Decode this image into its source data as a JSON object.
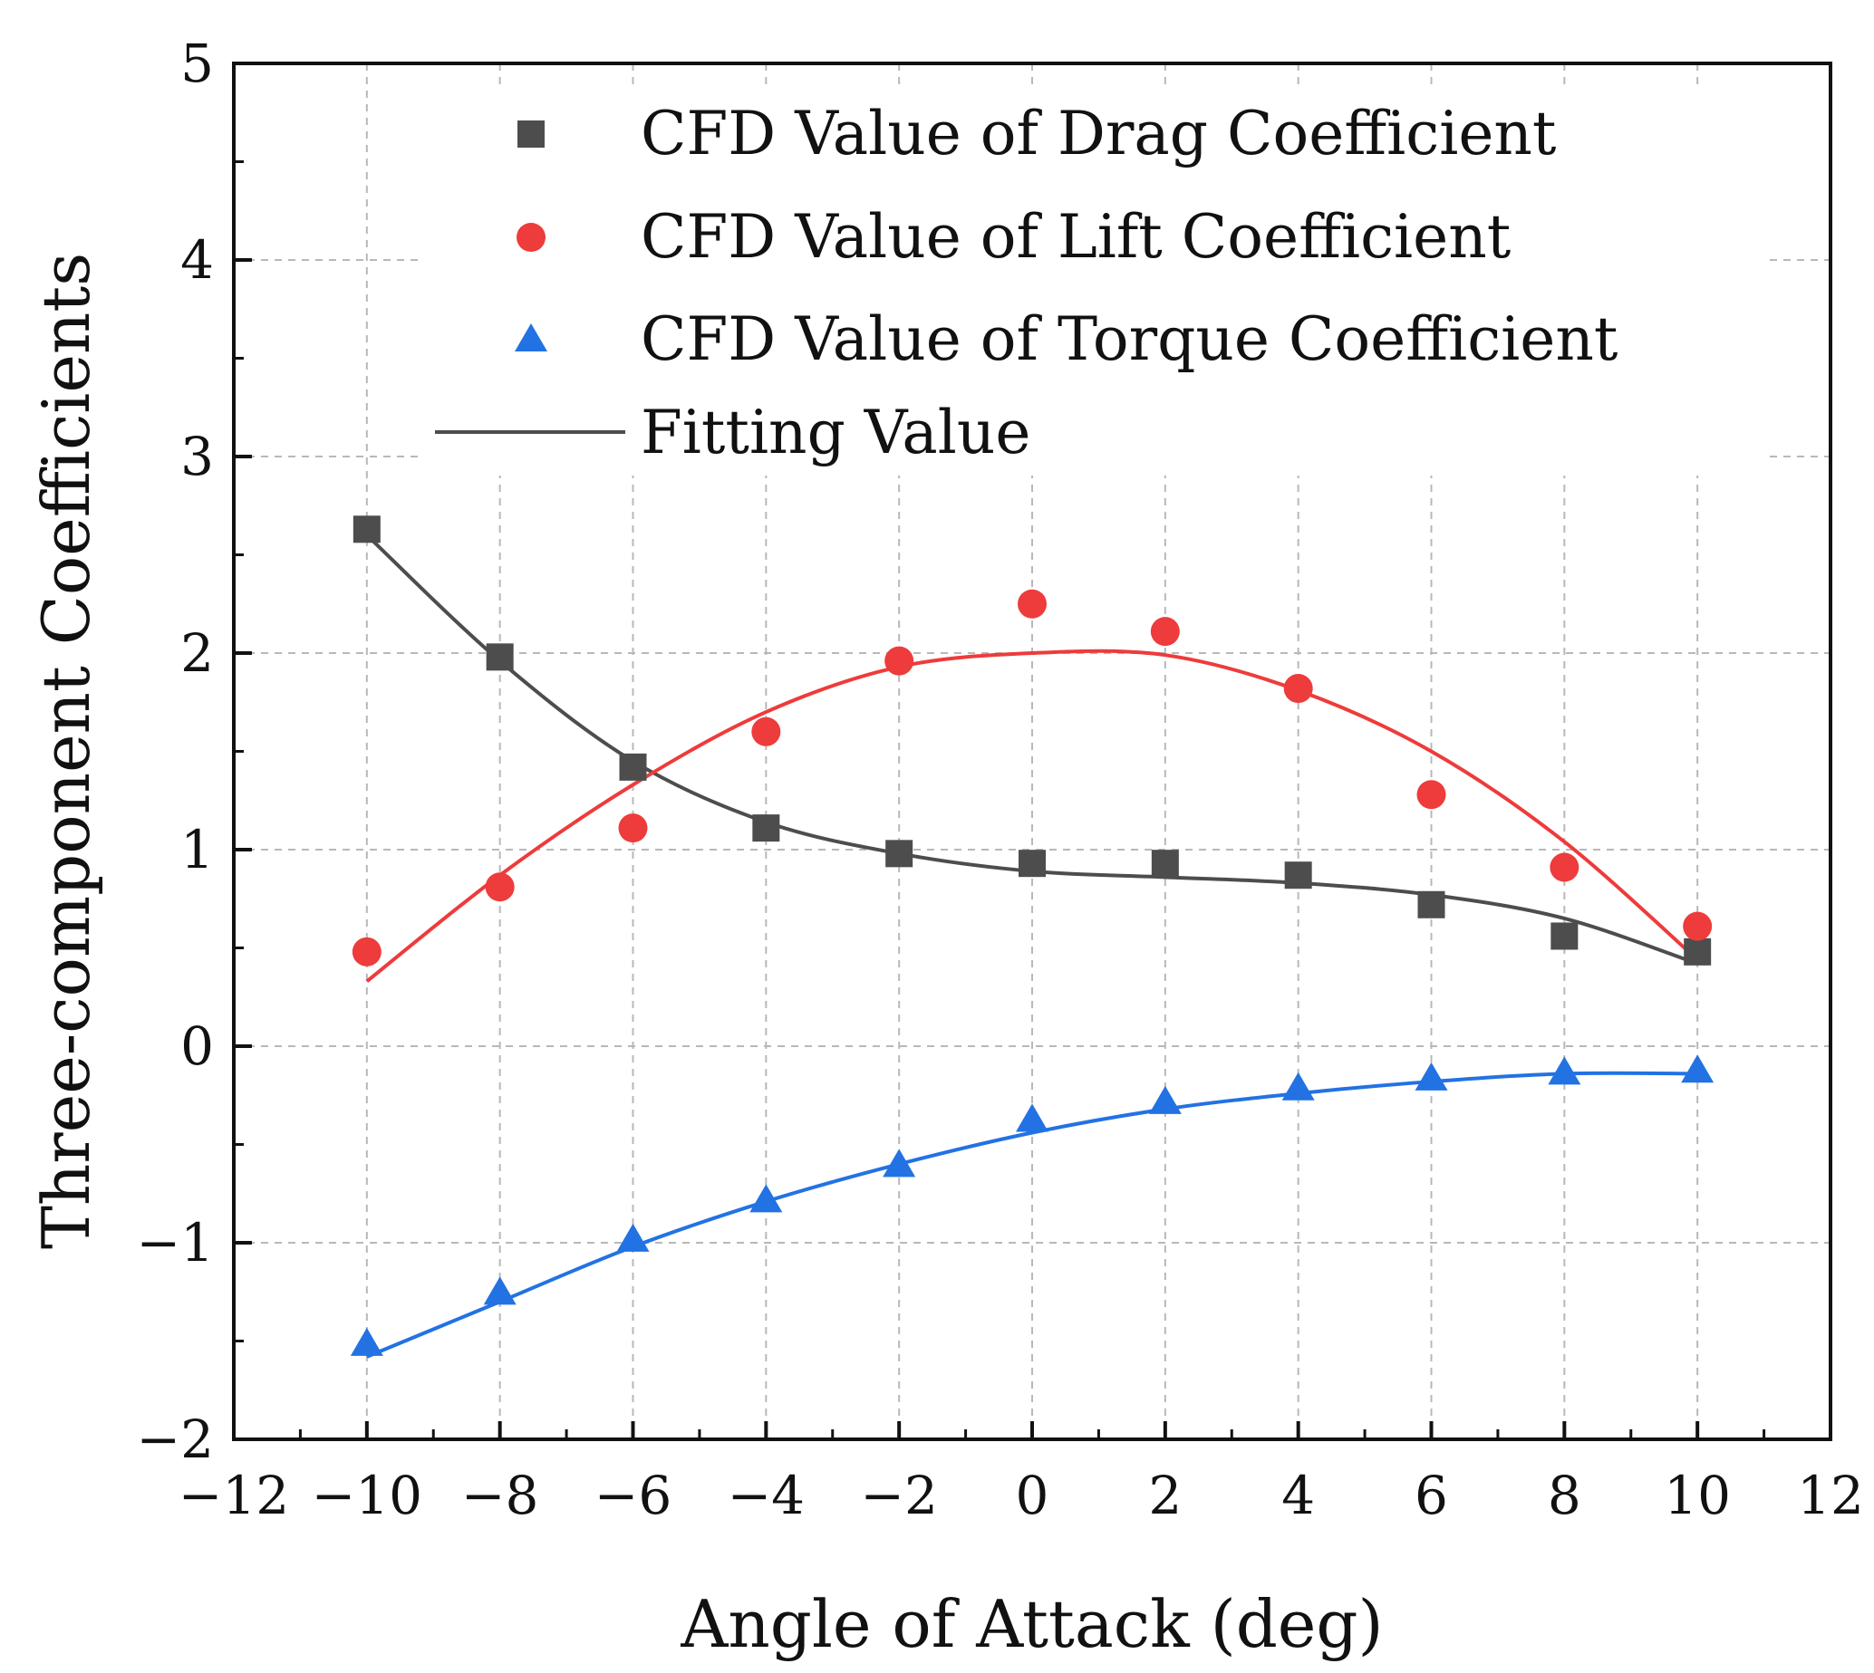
{
  "chart_data": {
    "type": "scatter",
    "xlabel": "Angle of Attack (deg)",
    "ylabel": "Three-component Coefficients",
    "xlim": [
      -12,
      12
    ],
    "ylim": [
      -2,
      5
    ],
    "grid": true,
    "x_ticks": [
      -12,
      -10,
      -8,
      -6,
      -4,
      -2,
      0,
      2,
      4,
      6,
      8,
      10,
      12
    ],
    "y_ticks": [
      -2,
      -1,
      0,
      1,
      2,
      3,
      4,
      5
    ],
    "x_tick_labels": [
      "−12",
      "−10",
      "−8",
      "−6",
      "−4",
      "−2",
      "0",
      "2",
      "4",
      "6",
      "8",
      "10",
      "12"
    ],
    "y_tick_labels": [
      "−2",
      "−1",
      "0",
      "1",
      "2",
      "3",
      "4",
      "5"
    ],
    "legend_position": "top-right",
    "x": [
      -10,
      -8,
      -6,
      -4,
      -2,
      0,
      2,
      4,
      6,
      8,
      10
    ],
    "series": [
      {
        "name": "CFD Value of Drag Coefficient",
        "marker": "square",
        "color": "#4d4d4d",
        "values": [
          2.63,
          1.98,
          1.42,
          1.11,
          0.98,
          0.93,
          0.93,
          0.87,
          0.72,
          0.56,
          0.48
        ],
        "fit": [
          2.6,
          1.96,
          1.45,
          1.14,
          0.98,
          0.89,
          0.86,
          0.83,
          0.77,
          0.65,
          0.42
        ]
      },
      {
        "name": "CFD Value of Lift Coefficient",
        "marker": "circle",
        "color": "#ee3b3b",
        "values": [
          0.48,
          0.81,
          1.11,
          1.6,
          1.96,
          2.25,
          2.11,
          1.82,
          1.28,
          0.91,
          0.61
        ],
        "fit": [
          0.33,
          0.87,
          1.33,
          1.7,
          1.93,
          2.0,
          1.99,
          1.81,
          1.5,
          1.04,
          0.44
        ]
      },
      {
        "name": "CFD Value of Torque Coefficient",
        "marker": "triangle",
        "color": "#2272e3",
        "values": [
          -1.52,
          -1.26,
          -0.99,
          -0.79,
          -0.61,
          -0.38,
          -0.29,
          -0.22,
          -0.17,
          -0.14,
          -0.13
        ],
        "fit": [
          -1.58,
          -1.3,
          -1.02,
          -0.79,
          -0.6,
          -0.44,
          -0.32,
          -0.24,
          -0.18,
          -0.14,
          -0.14
        ]
      }
    ],
    "fit_legend": "Fitting Value"
  }
}
